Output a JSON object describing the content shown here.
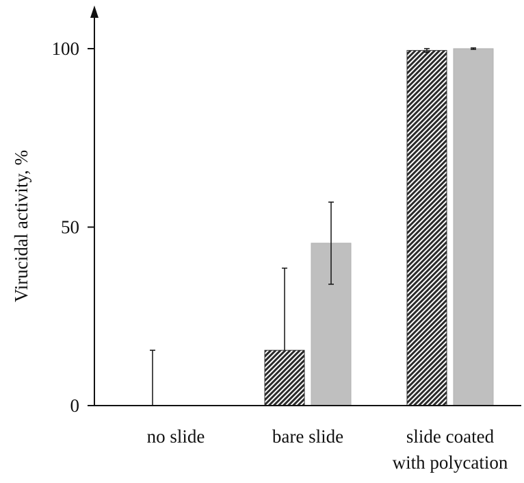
{
  "chart_data": {
    "type": "bar",
    "title": "",
    "xlabel": "",
    "ylabel": "Virucidal activity, %",
    "ylim": [
      0,
      110
    ],
    "yticks": [
      0,
      50,
      100
    ],
    "grid": false,
    "categories": [
      [
        "no slide"
      ],
      [
        "bare slide"
      ],
      [
        "slide coated",
        "with polycation"
      ]
    ],
    "series": [
      {
        "pattern": "hatched",
        "color": "#333333",
        "values": [
          0,
          15.5,
          99.5
        ],
        "error_upper": [
          15.5,
          23,
          0.5
        ],
        "error_lower": [
          0,
          0,
          0.5
        ]
      },
      {
        "pattern": "solid",
        "color": "#bfbfbf",
        "values": [
          0,
          45.5,
          100
        ],
        "error_upper": [
          0,
          11.5,
          0.2
        ],
        "error_lower": [
          0,
          11.5,
          0.2
        ]
      }
    ]
  }
}
